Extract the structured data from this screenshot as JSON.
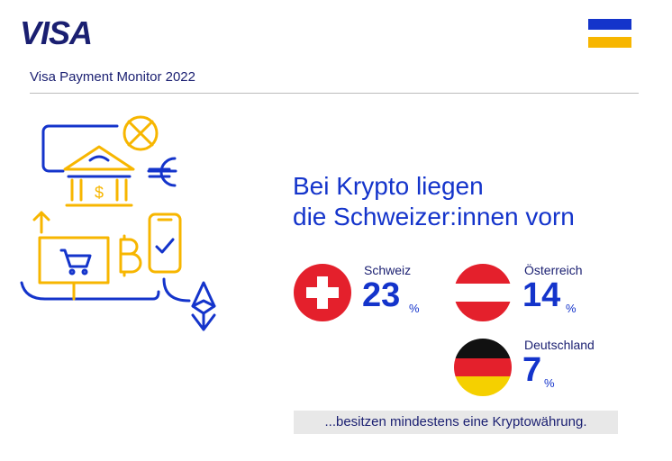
{
  "header": {
    "logo_text": "VISA",
    "subtitle": "Visa Payment Monitor 2022"
  },
  "colors": {
    "brand_blue": "#1434cb",
    "dark_navy": "#1a1f71",
    "gold": "#f7b600"
  },
  "illustration": {
    "icons": [
      "globe-crossed-icon",
      "bank-icon",
      "euro-icon",
      "mobile-check-icon",
      "bitcoin-icon",
      "laptop-cart-icon",
      "ethereum-icon",
      "upload-arrow-icon"
    ]
  },
  "headline": {
    "line1": "Bei Krypto liegen",
    "line2": "die Schweizer:innen vorn"
  },
  "countries": [
    {
      "name": "Schweiz",
      "value": "23",
      "unit": "%"
    },
    {
      "name": "Österreich",
      "value": "14",
      "unit": "%"
    },
    {
      "name": "Deutschland",
      "value": "7",
      "unit": "%"
    }
  ],
  "footnote": "...besitzen mindestens eine Kryptowährung."
}
